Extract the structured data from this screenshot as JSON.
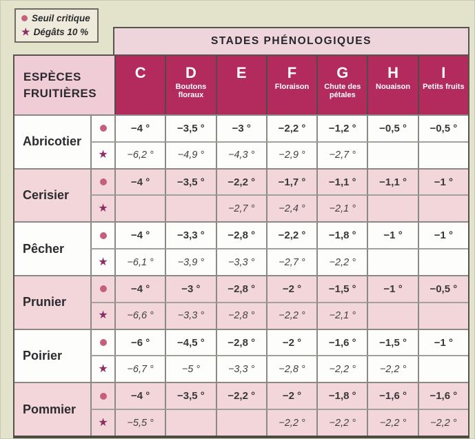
{
  "legend": {
    "items": [
      {
        "symbol": "dot",
        "label": "Seuil critique"
      },
      {
        "symbol": "star",
        "label": "Dégâts 10 %"
      }
    ]
  },
  "table": {
    "header_band": "STADES PHÉNOLOGIQUES",
    "species_header_line1": "ESPÈCES",
    "species_header_line2": "FRUITIÈRES",
    "columns": [
      {
        "letter": "C",
        "sublabel": ""
      },
      {
        "letter": "D",
        "sublabel": "Boutons floraux"
      },
      {
        "letter": "E",
        "sublabel": ""
      },
      {
        "letter": "F",
        "sublabel": "Floraison"
      },
      {
        "letter": "G",
        "sublabel": "Chute des pétales"
      },
      {
        "letter": "H",
        "sublabel": "Nouaison"
      },
      {
        "letter": "I",
        "sublabel": "Petits fruits"
      }
    ],
    "rows": [
      {
        "name": "Abricotier",
        "tone": "white",
        "seuil_critique": [
          "−4 °",
          "−3,5 °",
          "−3 °",
          "−2,2 °",
          "−1,2 °",
          "−0,5 °",
          "−0,5 °"
        ],
        "degats_10": [
          "−6,2 °",
          "−4,9 °",
          "−4,3 °",
          "−2,9 °",
          "−2,7 °",
          "",
          ""
        ]
      },
      {
        "name": "Cerisier",
        "tone": "pink",
        "seuil_critique": [
          "−4 °",
          "−3,5 °",
          "−2,2 °",
          "−1,7 °",
          "−1,1 °",
          "−1,1 °",
          "−1 °"
        ],
        "degats_10": [
          "",
          "",
          "−2,7 °",
          "−2,4 °",
          "−2,1 °",
          "",
          ""
        ]
      },
      {
        "name": "Pêcher",
        "tone": "white",
        "seuil_critique": [
          "−4 °",
          "−3,3 °",
          "−2,8 °",
          "−2,2 °",
          "−1,8 °",
          "−1 °",
          "−1 °"
        ],
        "degats_10": [
          "−6,1 °",
          "−3,9 °",
          "−3,3 °",
          "−2,7 °",
          "−2,2 °",
          "",
          ""
        ]
      },
      {
        "name": "Prunier",
        "tone": "pink",
        "seuil_critique": [
          "−4 °",
          "−3 °",
          "−2,8 °",
          "−2 °",
          "−1,5 °",
          "−1 °",
          "−0,5 °"
        ],
        "degats_10": [
          "−6,6 °",
          "−3,3 °",
          "−2,8 °",
          "−2,2 °",
          "−2,1 °",
          "",
          ""
        ]
      },
      {
        "name": "Poirier",
        "tone": "white",
        "seuil_critique": [
          "−6 °",
          "−4,5 °",
          "−2,8 °",
          "−2 °",
          "−1,6 °",
          "−1,5 °",
          "−1 °"
        ],
        "degats_10": [
          "−6,7 °",
          "−5 °",
          "−3,3 °",
          "−2,8 °",
          "−2,2 °",
          "−2,2 °",
          ""
        ]
      },
      {
        "name": "Pommier",
        "tone": "pink",
        "seuil_critique": [
          "−4 °",
          "−3,5 °",
          "−2,2 °",
          "−2 °",
          "−1,8 °",
          "−1,6 °",
          "−1,6 °"
        ],
        "degats_10": [
          "−5,5 °",
          "",
          "",
          "−2,2 °",
          "−2,2 °",
          "−2,2 °",
          "−2,2 °"
        ]
      }
    ]
  },
  "colors": {
    "background": "#e3e2cb",
    "accent_crimson": "#b32b5c",
    "band_pink": "#eed5db",
    "species_header_pink": "#f0ccd7",
    "row_pink": "#f3d6da",
    "dot": "#c65f7e",
    "star": "#8c2d63",
    "grid_line": "#8b8985"
  }
}
